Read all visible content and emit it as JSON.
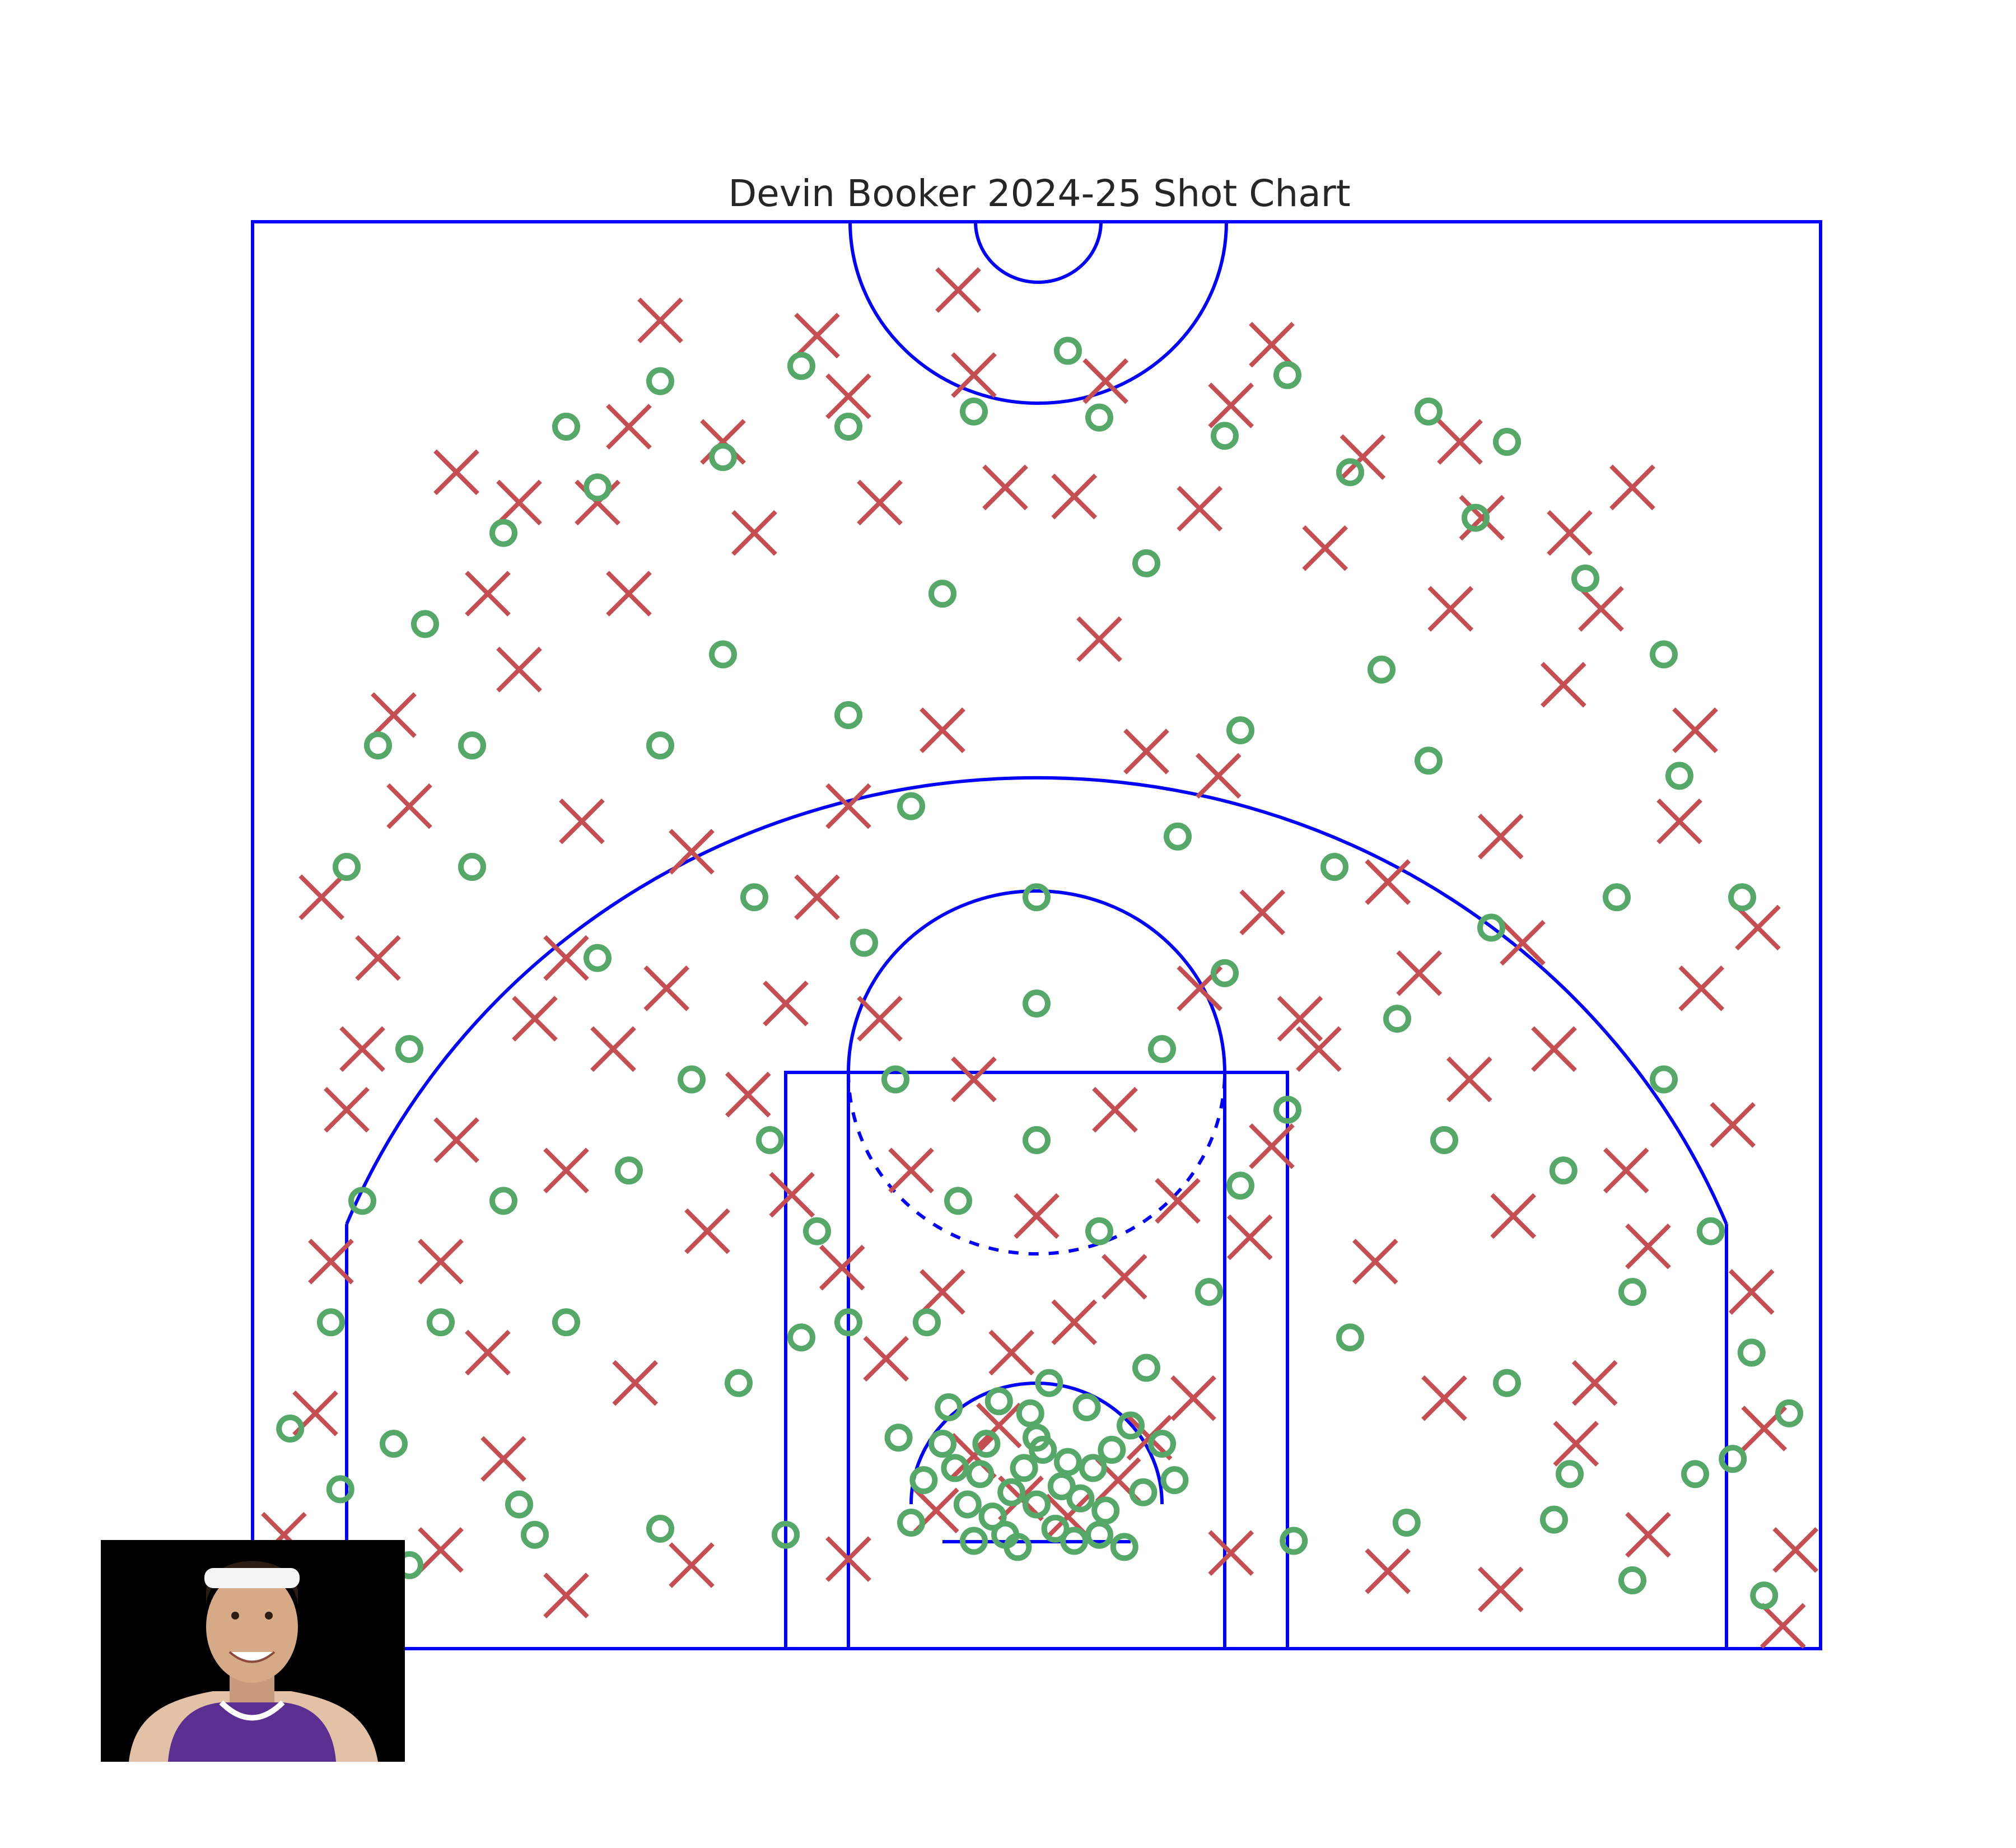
{
  "chart_data": {
    "type": "scatter",
    "title": "Devin Booker 2024-25 Shot Chart",
    "xlabel": "",
    "ylabel": "",
    "xlim": [
      -250,
      250
    ],
    "ylim": [
      -47.5,
      422.5
    ],
    "grid": false,
    "legend": "none",
    "colors": {
      "court": "#0000ff",
      "made": "#55a868",
      "missed": "#c44e52",
      "title": "#262626"
    },
    "marker_made": "circle",
    "marker_missed": "x",
    "series": [
      {
        "name": "",
        "marker": "circle",
        "points": [
          [
            0,
            0
          ],
          [
            -8,
            4
          ],
          [
            8,
            6
          ],
          [
            -14,
            -4
          ],
          [
            14,
            2
          ],
          [
            -4,
            12
          ],
          [
            6,
            -8
          ],
          [
            -18,
            10
          ],
          [
            18,
            12
          ],
          [
            2,
            18
          ],
          [
            -10,
            -10
          ],
          [
            12,
            -12
          ],
          [
            -22,
            0
          ],
          [
            22,
            -2
          ],
          [
            0,
            22
          ],
          [
            -16,
            20
          ],
          [
            24,
            18
          ],
          [
            -26,
            12
          ],
          [
            -6,
            -14
          ],
          [
            10,
            14
          ],
          [
            -30,
            20
          ],
          [
            30,
            26
          ],
          [
            -2,
            30
          ],
          [
            -20,
            -12
          ],
          [
            20,
            -10
          ],
          [
            34,
            4
          ],
          [
            -36,
            8
          ],
          [
            16,
            32
          ],
          [
            -12,
            34
          ],
          [
            40,
            20
          ],
          [
            -40,
            -6
          ],
          [
            28,
            -14
          ],
          [
            -28,
            32
          ],
          [
            4,
            40
          ],
          [
            44,
            8
          ],
          [
            -44,
            22
          ],
          [
            -60,
            60
          ],
          [
            55,
            70
          ],
          [
            -70,
            90
          ],
          [
            65,
            105
          ],
          [
            -85,
            120
          ],
          [
            80,
            130
          ],
          [
            -45,
            140
          ],
          [
            40,
            150
          ],
          [
            -95,
            40
          ],
          [
            100,
            55
          ],
          [
            -110,
            140
          ],
          [
            115,
            160
          ],
          [
            0,
            120
          ],
          [
            20,
            90
          ],
          [
            -25,
            100
          ],
          [
            -55,
            185
          ],
          [
            60,
            175
          ],
          [
            -90,
            200
          ],
          [
            95,
            210
          ],
          [
            0,
            165
          ],
          [
            -130,
            110
          ],
          [
            130,
            120
          ],
          [
            -140,
            180
          ],
          [
            145,
            190
          ],
          [
            -150,
            60
          ],
          [
            150,
            40
          ],
          [
            -170,
            100
          ],
          [
            168,
            110
          ],
          [
            -165,
            0
          ],
          [
            170,
            10
          ],
          [
            -160,
            -10
          ],
          [
            165,
            -5
          ],
          [
            -120,
            -8
          ],
          [
            118,
            -6
          ],
          [
            -80,
            -10
          ],
          [
            82,
            -12
          ],
          [
            -35,
            60
          ],
          [
            35,
            45
          ],
          [
            -75,
            55
          ],
          [
            -190,
            60
          ],
          [
            190,
            70
          ],
          [
            -200,
            150
          ],
          [
            200,
            140
          ],
          [
            -180,
            210
          ],
          [
            185,
            200
          ],
          [
            -210,
            250
          ],
          [
            205,
            240
          ],
          [
            -120,
            250
          ],
          [
            125,
            245
          ],
          [
            -60,
            260
          ],
          [
            65,
            255
          ],
          [
            -215,
            100
          ],
          [
            215,
            90
          ],
          [
            -205,
            20
          ],
          [
            210,
            10
          ],
          [
            -222,
            5
          ],
          [
            222,
            15
          ],
          [
            -225,
            60
          ],
          [
            228,
            50
          ],
          [
            -40,
            230
          ],
          [
            45,
            220
          ],
          [
            -100,
            280
          ],
          [
            110,
            275
          ],
          [
            0,
            200
          ],
          [
            -235,
            -30
          ],
          [
            232,
            -30
          ],
          [
            -238,
            25
          ],
          [
            240,
            30
          ],
          [
            -200,
            -20
          ],
          [
            190,
            -25
          ],
          [
            -170,
            320
          ],
          [
            -140,
            335
          ],
          [
            -100,
            345
          ],
          [
            -60,
            355
          ],
          [
            -20,
            360
          ],
          [
            20,
            358
          ],
          [
            60,
            352
          ],
          [
            100,
            340
          ],
          [
            140,
            325
          ],
          [
            175,
            305
          ],
          [
            -195,
            290
          ],
          [
            200,
            280
          ],
          [
            -220,
            210
          ],
          [
            225,
            200
          ],
          [
            -30,
            300
          ],
          [
            35,
            310
          ],
          [
            -150,
            355
          ],
          [
            150,
            350
          ],
          [
            -75,
            375
          ],
          [
            80,
            372
          ],
          [
            10,
            380
          ],
          [
            -120,
            370
          ],
          [
            125,
            360
          ],
          [
            -180,
            250
          ]
        ]
      },
      {
        "name": "",
        "marker": "x",
        "points": [
          [
            -5,
            2
          ],
          [
            10,
            -4
          ],
          [
            -20,
            16
          ],
          [
            26,
            8
          ],
          [
            -32,
            -2
          ],
          [
            36,
            22
          ],
          [
            -12,
            26
          ],
          [
            -48,
            48
          ],
          [
            50,
            35
          ],
          [
            -62,
            78
          ],
          [
            68,
            88
          ],
          [
            -78,
            102
          ],
          [
            75,
            118
          ],
          [
            -92,
            135
          ],
          [
            90,
            150
          ],
          [
            -105,
            90
          ],
          [
            108,
            80
          ],
          [
            -118,
            170
          ],
          [
            122,
            175
          ],
          [
            -135,
            150
          ],
          [
            138,
            140
          ],
          [
            -150,
            110
          ],
          [
            152,
            95
          ],
          [
            -160,
            160
          ],
          [
            165,
            150
          ],
          [
            -175,
            50
          ],
          [
            178,
            40
          ],
          [
            -185,
            120
          ],
          [
            188,
            110
          ],
          [
            -20,
            140
          ],
          [
            25,
            130
          ],
          [
            -50,
            160
          ],
          [
            52,
            170
          ],
          [
            0,
            95
          ],
          [
            -70,
            200
          ],
          [
            72,
            195
          ],
          [
            -110,
            215
          ],
          [
            112,
            205
          ],
          [
            -145,
            225
          ],
          [
            148,
            220
          ],
          [
            -170,
            15
          ],
          [
            172,
            20
          ],
          [
            -190,
            -15
          ],
          [
            195,
            -10
          ],
          [
            -150,
            -30
          ],
          [
            148,
            -28
          ],
          [
            -110,
            -20
          ],
          [
            112,
            -22
          ],
          [
            -60,
            -18
          ],
          [
            62,
            -16
          ],
          [
            -210,
            180
          ],
          [
            212,
            170
          ],
          [
            -220,
            130
          ],
          [
            222,
            125
          ],
          [
            -225,
            80
          ],
          [
            228,
            70
          ],
          [
            -230,
            30
          ],
          [
            232,
            25
          ],
          [
            -240,
            -10
          ],
          [
            242,
            -15
          ],
          [
            -236,
            -35
          ],
          [
            238,
            -40
          ],
          [
            -228,
            200
          ],
          [
            230,
            190
          ],
          [
            -200,
            230
          ],
          [
            205,
            225
          ],
          [
            -165,
            275
          ],
          [
            168,
            270
          ],
          [
            -130,
            300
          ],
          [
            132,
            295
          ],
          [
            -90,
            320
          ],
          [
            92,
            315
          ],
          [
            -50,
            330
          ],
          [
            52,
            328
          ],
          [
            -10,
            335
          ],
          [
            12,
            332
          ],
          [
            -175,
            300
          ],
          [
            180,
            295
          ],
          [
            -140,
            330
          ],
          [
            142,
            325
          ],
          [
            -100,
            350
          ],
          [
            104,
            345
          ],
          [
            -60,
            365
          ],
          [
            62,
            362
          ],
          [
            -20,
            372
          ],
          [
            22,
            370
          ],
          [
            -165,
            330
          ],
          [
            170,
            320
          ],
          [
            -130,
            355
          ],
          [
            135,
            350
          ],
          [
            -70,
            385
          ],
          [
            75,
            382
          ],
          [
            -25,
            400
          ],
          [
            -120,
            390
          ],
          [
            20,
            285
          ],
          [
            -185,
            340
          ],
          [
            190,
            335
          ],
          [
            -205,
            260
          ],
          [
            210,
            255
          ],
          [
            -215,
            150
          ],
          [
            -128,
            40
          ],
          [
            130,
            35
          ],
          [
            -40,
            110
          ],
          [
            45,
            100
          ],
          [
            -80,
            165
          ],
          [
            84,
            160
          ],
          [
            -60,
            230
          ],
          [
            58,
            240
          ],
          [
            -30,
            255
          ],
          [
            35,
            248
          ],
          [
            -150,
            180
          ],
          [
            155,
            185
          ],
          [
            -190,
            80
          ],
          [
            195,
            85
          ],
          [
            -30,
            70
          ],
          [
            28,
            75
          ],
          [
            -8,
            50
          ],
          [
            12,
            60
          ]
        ]
      }
    ]
  },
  "player_photo": {
    "subject": "player headshot",
    "background": "#000000"
  }
}
